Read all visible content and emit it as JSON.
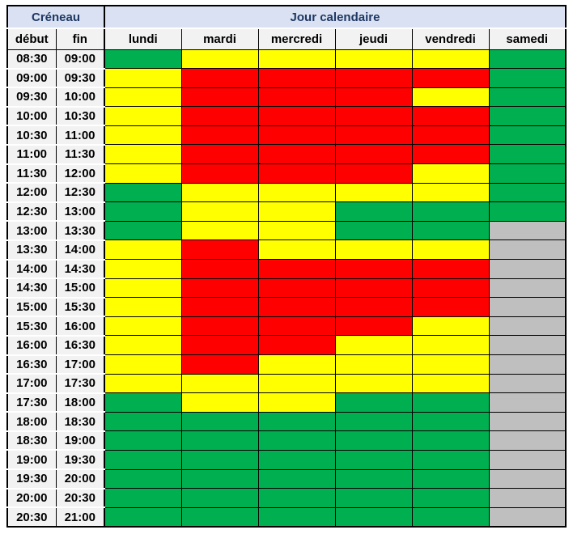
{
  "table": {
    "header": {
      "creneau": "Créneau",
      "jour_calendaire": "Jour calendaire",
      "debut": "début",
      "fin": "fin"
    },
    "days": [
      "lundi",
      "mardi",
      "mercredi",
      "jeudi",
      "vendredi",
      "samedi"
    ],
    "colors": {
      "green": "#00B050",
      "yellow": "#FFFF00",
      "red": "#FF0000",
      "gray": "#BFBFBF"
    },
    "header_colors": {
      "merged_header_bg": "#D9E1F2",
      "merged_header_text": "#1F3864",
      "label_bg": "#F2F2F2",
      "grid_line": "#000000"
    },
    "rows": [
      {
        "debut": "08:30",
        "fin": "09:00",
        "cells": [
          "green",
          "yellow",
          "yellow",
          "yellow",
          "yellow",
          "green"
        ]
      },
      {
        "debut": "09:00",
        "fin": "09:30",
        "cells": [
          "yellow",
          "red",
          "red",
          "red",
          "red",
          "green"
        ]
      },
      {
        "debut": "09:30",
        "fin": "10:00",
        "cells": [
          "yellow",
          "red",
          "red",
          "red",
          "yellow",
          "green"
        ]
      },
      {
        "debut": "10:00",
        "fin": "10:30",
        "cells": [
          "yellow",
          "red",
          "red",
          "red",
          "red",
          "green"
        ]
      },
      {
        "debut": "10:30",
        "fin": "11:00",
        "cells": [
          "yellow",
          "red",
          "red",
          "red",
          "red",
          "green"
        ]
      },
      {
        "debut": "11:00",
        "fin": "11:30",
        "cells": [
          "yellow",
          "red",
          "red",
          "red",
          "red",
          "green"
        ]
      },
      {
        "debut": "11:30",
        "fin": "12:00",
        "cells": [
          "yellow",
          "red",
          "red",
          "red",
          "yellow",
          "green"
        ]
      },
      {
        "debut": "12:00",
        "fin": "12:30",
        "cells": [
          "green",
          "yellow",
          "yellow",
          "yellow",
          "yellow",
          "green"
        ]
      },
      {
        "debut": "12:30",
        "fin": "13:00",
        "cells": [
          "green",
          "yellow",
          "yellow",
          "green",
          "green",
          "green"
        ]
      },
      {
        "debut": "13:00",
        "fin": "13:30",
        "cells": [
          "green",
          "yellow",
          "yellow",
          "green",
          "green",
          "gray"
        ]
      },
      {
        "debut": "13:30",
        "fin": "14:00",
        "cells": [
          "yellow",
          "red",
          "yellow",
          "yellow",
          "yellow",
          "gray"
        ]
      },
      {
        "debut": "14:00",
        "fin": "14:30",
        "cells": [
          "yellow",
          "red",
          "red",
          "red",
          "red",
          "gray"
        ]
      },
      {
        "debut": "14:30",
        "fin": "15:00",
        "cells": [
          "yellow",
          "red",
          "red",
          "red",
          "red",
          "gray"
        ]
      },
      {
        "debut": "15:00",
        "fin": "15:30",
        "cells": [
          "yellow",
          "red",
          "red",
          "red",
          "red",
          "gray"
        ]
      },
      {
        "debut": "15:30",
        "fin": "16:00",
        "cells": [
          "yellow",
          "red",
          "red",
          "red",
          "yellow",
          "gray"
        ]
      },
      {
        "debut": "16:00",
        "fin": "16:30",
        "cells": [
          "yellow",
          "red",
          "red",
          "yellow",
          "yellow",
          "gray"
        ]
      },
      {
        "debut": "16:30",
        "fin": "17:00",
        "cells": [
          "yellow",
          "red",
          "yellow",
          "yellow",
          "yellow",
          "gray"
        ]
      },
      {
        "debut": "17:00",
        "fin": "17:30",
        "cells": [
          "yellow",
          "yellow",
          "yellow",
          "yellow",
          "yellow",
          "gray"
        ]
      },
      {
        "debut": "17:30",
        "fin": "18:00",
        "cells": [
          "green",
          "yellow",
          "yellow",
          "green",
          "green",
          "gray"
        ]
      },
      {
        "debut": "18:00",
        "fin": "18:30",
        "cells": [
          "green",
          "green",
          "green",
          "green",
          "green",
          "gray"
        ]
      },
      {
        "debut": "18:30",
        "fin": "19:00",
        "cells": [
          "green",
          "green",
          "green",
          "green",
          "green",
          "gray"
        ]
      },
      {
        "debut": "19:00",
        "fin": "19:30",
        "cells": [
          "green",
          "green",
          "green",
          "green",
          "green",
          "gray"
        ]
      },
      {
        "debut": "19:30",
        "fin": "20:00",
        "cells": [
          "green",
          "green",
          "green",
          "green",
          "green",
          "gray"
        ]
      },
      {
        "debut": "20:00",
        "fin": "20:30",
        "cells": [
          "green",
          "green",
          "green",
          "green",
          "green",
          "gray"
        ]
      },
      {
        "debut": "20:30",
        "fin": "21:00",
        "cells": [
          "green",
          "green",
          "green",
          "green",
          "green",
          "gray"
        ]
      }
    ]
  }
}
